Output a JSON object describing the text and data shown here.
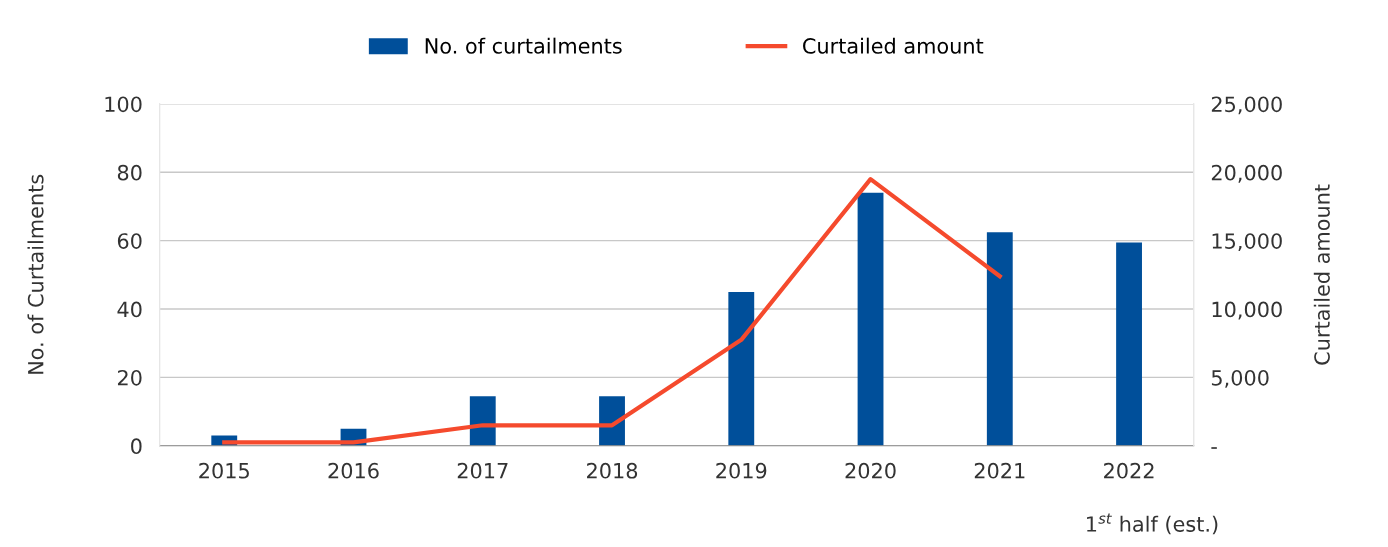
{
  "chart_data": {
    "type": "bar",
    "categories": [
      "2015",
      "2016",
      "2017",
      "2018",
      "2019",
      "2020",
      "2021",
      "2022"
    ],
    "series": [
      {
        "name": "No. of curtailments",
        "color": "#004f9a",
        "values": [
          3,
          5,
          14.5,
          14.5,
          45,
          74,
          62.5,
          59.5
        ]
      },
      {
        "name": "Curtailed amount",
        "type": "line",
        "axis": "y2",
        "color": "#f54a2d",
        "values": [
          250,
          250,
          1500,
          1500,
          7750,
          19500,
          12400,
          null
        ]
      }
    ],
    "ylabel": "No. of Curtailments",
    "y2label": "Curtailed amount",
    "ylim": [
      0,
      100
    ],
    "yticks": [
      0,
      20,
      40,
      60,
      80,
      100
    ],
    "y2lim": [
      0,
      25000
    ],
    "y2ticks": [
      {
        "value": 0,
        "label": "-"
      },
      {
        "value": 5000,
        "label": "5,000"
      },
      {
        "value": 10000,
        "label": "10,000"
      },
      {
        "value": 15000,
        "label": "15,000"
      },
      {
        "value": 20000,
        "label": "20,000"
      },
      {
        "value": 25000,
        "label": "25,000"
      }
    ],
    "annotations": [
      "1$^{st}$ half (est.)"
    ],
    "grid": "y",
    "legend": "top",
    "marker": "none",
    "line_style": "solid"
  }
}
